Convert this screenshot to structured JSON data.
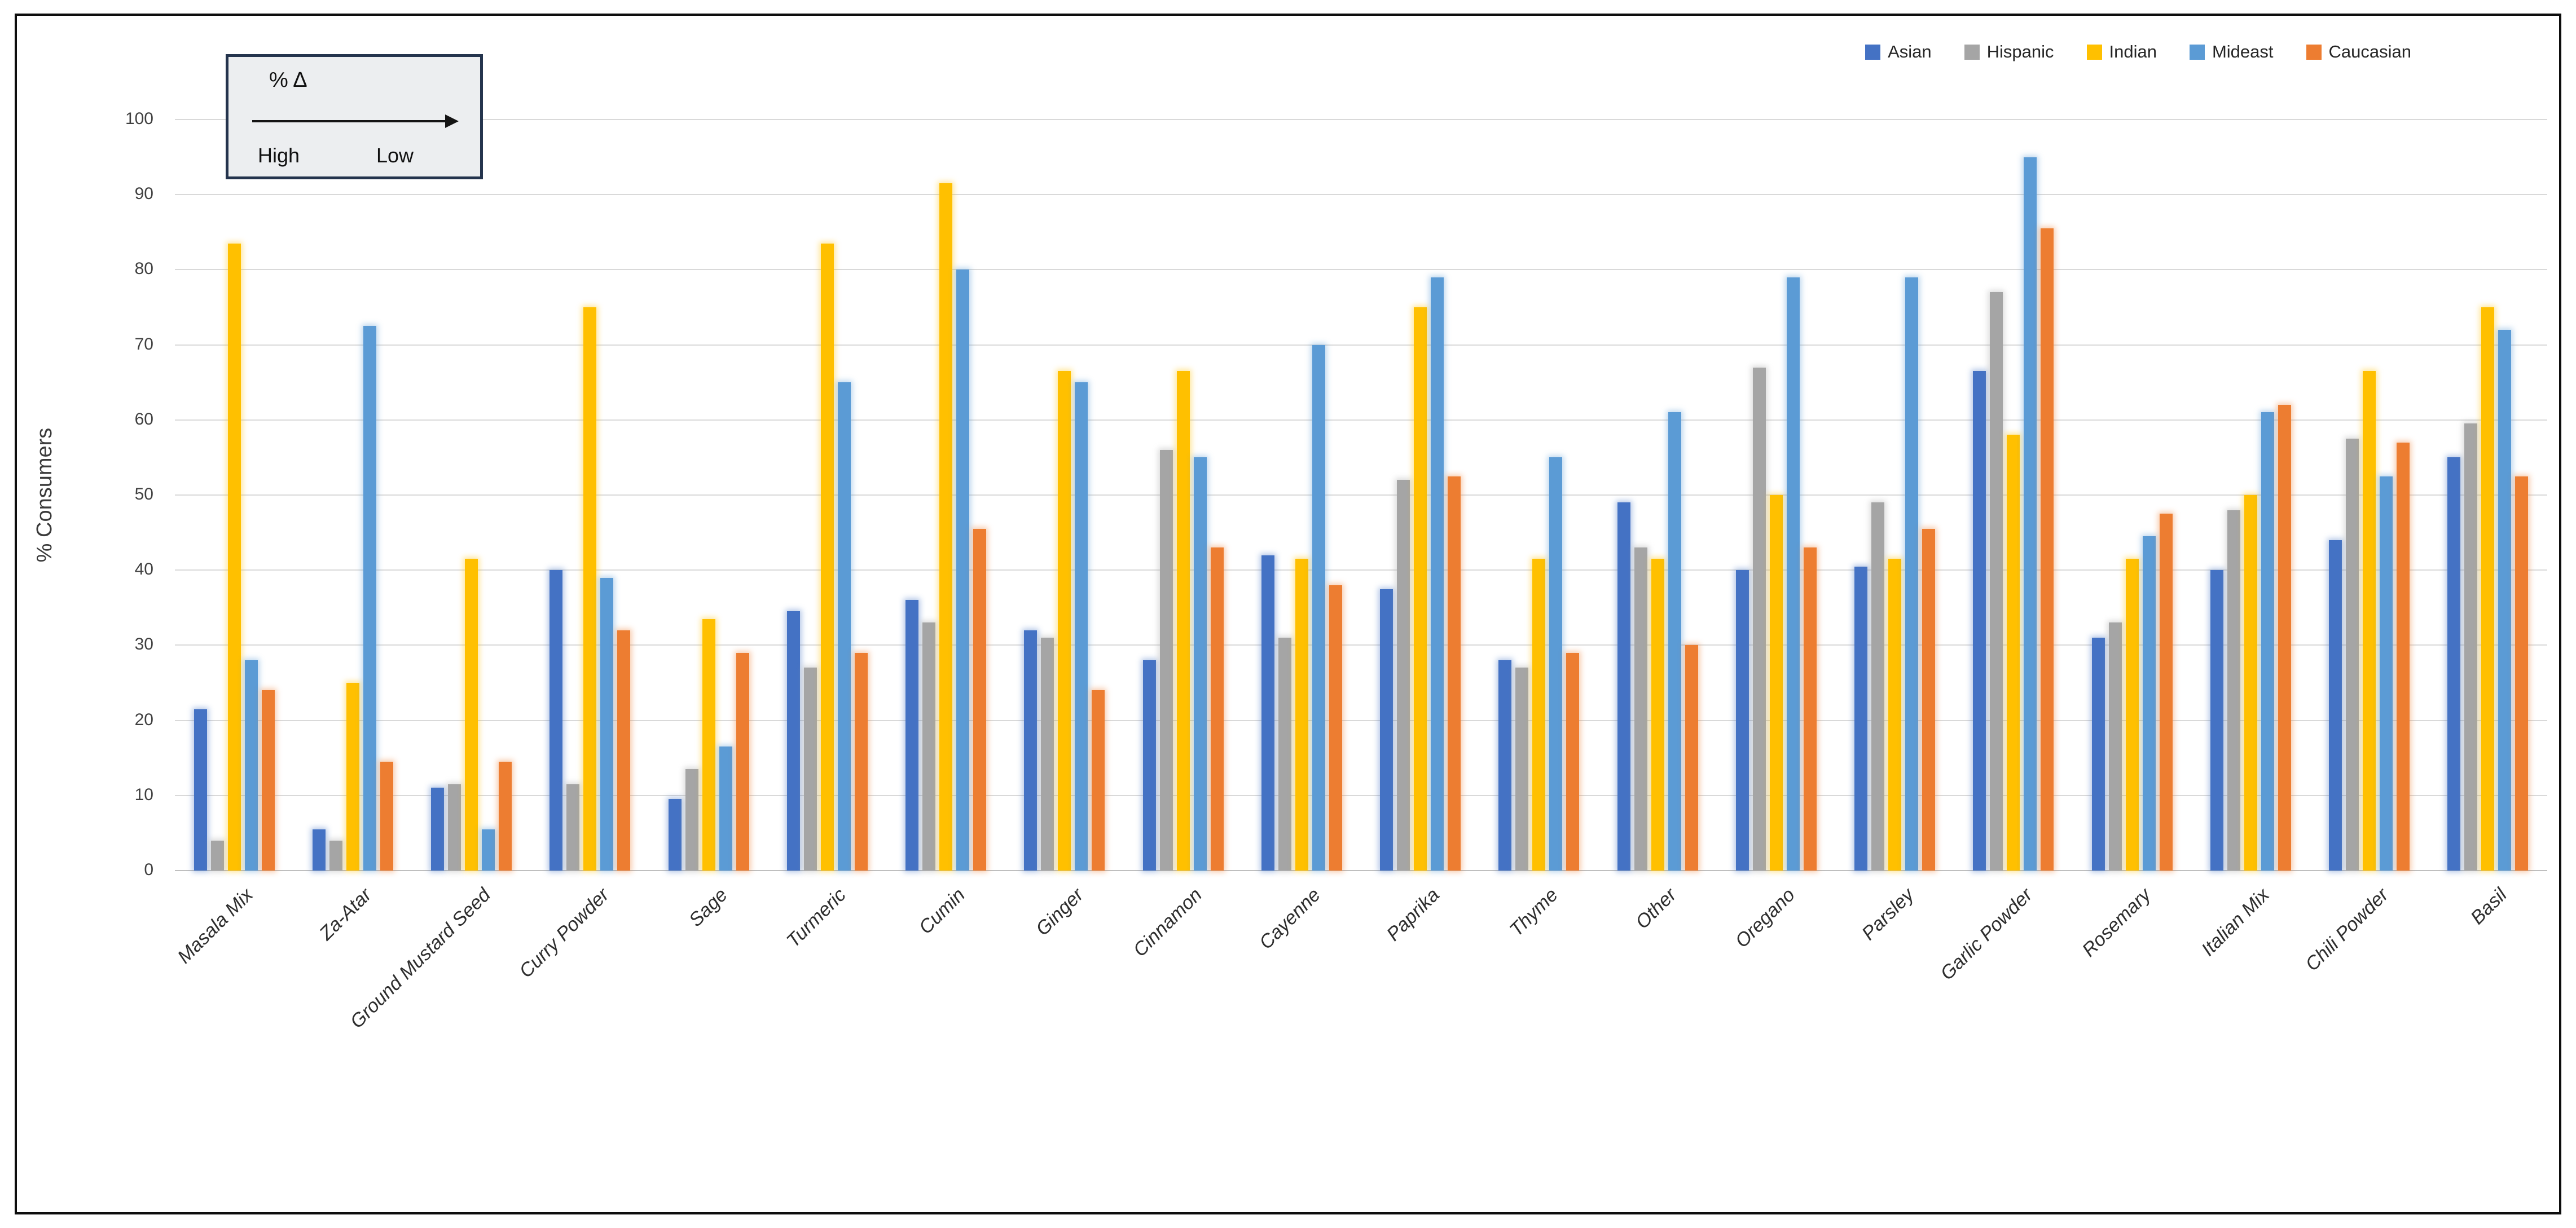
{
  "chart_data": {
    "type": "bar",
    "title": "",
    "xlabel": "",
    "ylabel": "% Consumers",
    "ylim": [
      0,
      100
    ],
    "y_ticks": [
      0,
      10,
      20,
      30,
      40,
      50,
      60,
      70,
      80,
      90,
      100
    ],
    "grid": true,
    "legend_position": "top-right",
    "categories": [
      "Masala Mix",
      "Za-Atar",
      "Ground Mustard Seed",
      "Curry Powder",
      "Sage",
      "Turmeric",
      "Cumin",
      "Ginger",
      "Cinnamon",
      "Cayenne",
      "Paprika",
      "Thyme",
      "Other",
      "Oregano",
      "Parsley",
      "Garlic Powder",
      "Rosemary",
      "Italian Mix",
      "Chili Powder",
      "Basil"
    ],
    "series": [
      {
        "name": "Asian",
        "color": "#4472C4",
        "values": [
          21.5,
          5.5,
          11,
          40,
          9.5,
          34.5,
          36,
          32,
          28,
          42,
          37.5,
          28,
          49,
          40,
          40.5,
          66.5,
          31,
          40,
          44,
          55
        ]
      },
      {
        "name": "Hispanic",
        "color": "#A5A5A5",
        "values": [
          4,
          4,
          11.5,
          11.5,
          13.5,
          27,
          33,
          31,
          56,
          31,
          52,
          27,
          43,
          67,
          49,
          77,
          33,
          48,
          57.5,
          59.5
        ]
      },
      {
        "name": "Indian",
        "color": "#FFC000",
        "values": [
          83.5,
          25,
          41.5,
          75,
          33.5,
          83.5,
          91.5,
          66.5,
          66.5,
          41.5,
          75,
          41.5,
          41.5,
          50,
          41.5,
          58,
          41.5,
          50,
          66.5,
          75
        ]
      },
      {
        "name": "Mideast",
        "color": "#5B9BD5",
        "values": [
          28,
          72.5,
          5.5,
          39,
          16.5,
          65,
          80,
          65,
          55,
          70,
          79,
          55,
          61,
          79,
          79,
          95,
          44.5,
          61,
          52.5,
          72
        ]
      },
      {
        "name": "Caucasian",
        "color": "#ED7D31",
        "values": [
          24,
          14.5,
          14.5,
          32,
          29,
          29,
          45.5,
          24,
          43,
          38,
          52.5,
          29,
          30,
          43,
          45.5,
          85.5,
          47.5,
          62,
          57,
          52.5
        ]
      }
    ]
  },
  "annotation": {
    "title": "% Δ",
    "left_label": "High",
    "right_label": "Low"
  },
  "colors": {
    "gridline": "#d9d9d9",
    "axis_line": "#bfbfbf",
    "frame_border": "#0d0d0d",
    "annotation_border": "#24344d",
    "annotation_fill": "#eceef0"
  }
}
